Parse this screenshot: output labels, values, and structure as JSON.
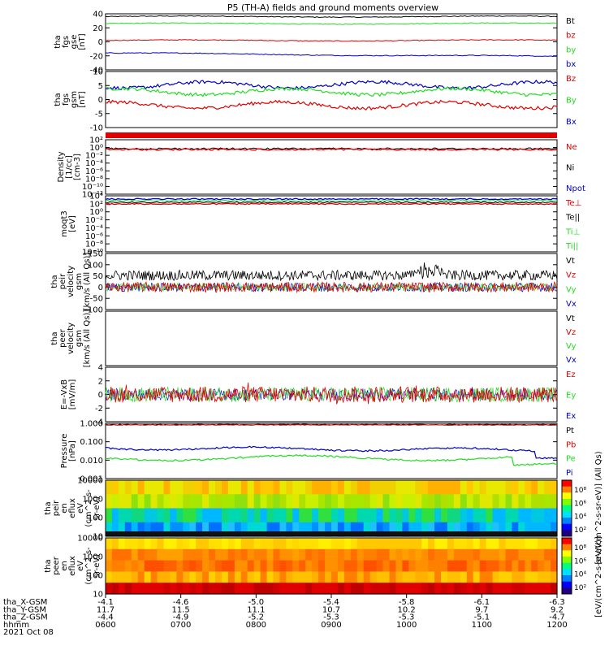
{
  "title": "P5 (TH-A) fields and ground moments overview",
  "colors": {
    "black": "#000000",
    "red": "#e00000",
    "green": "#22dd22",
    "blue": "#0000cc"
  },
  "chart_data": {
    "type": "line",
    "x_axis": {
      "ticks": [
        "0600",
        "0700",
        "0800",
        "0900",
        "1000",
        "1100",
        "1200"
      ],
      "rows": [
        {
          "label": "tha_X-GSM",
          "values": [
            "-4.1",
            "-4.6",
            "-5.0",
            "-5.4",
            "-5.8",
            "-6.1",
            "-6.3"
          ]
        },
        {
          "label": "tha_Y-GSM",
          "values": [
            "11.7",
            "11.5",
            "11.1",
            "10.7",
            "10.2",
            "9.7",
            "9.2"
          ]
        },
        {
          "label": "tha_Z-GSM",
          "values": [
            "-4.4",
            "-4.9",
            "-5.2",
            "-5.3",
            "-5.3",
            "-5.1",
            "-4.7"
          ]
        },
        {
          "label": "hhmm",
          "values": [
            "0600",
            "0700",
            "0800",
            "0900",
            "1000",
            "1100",
            "1200"
          ]
        }
      ],
      "date": "2021 Oct 08"
    },
    "panels": [
      {
        "id": "fgs-gse",
        "ylabel": [
          "tha",
          "fgs",
          "gse",
          "[nT]"
        ],
        "yrange": [
          -40,
          40
        ],
        "ticks": [
          "40",
          "20",
          "0",
          "-20",
          "-40"
        ],
        "legend": [
          {
            "name": "Bt",
            "color": "black"
          },
          {
            "name": "bz",
            "color": "red"
          },
          {
            "name": "by",
            "color": "green"
          },
          {
            "name": "bx",
            "color": "blue"
          }
        ],
        "series": [
          {
            "color": "black",
            "value": 36
          },
          {
            "color": "green",
            "value": 26
          },
          {
            "color": "red",
            "value": 2
          },
          {
            "color": "blue",
            "value": -16
          }
        ]
      },
      {
        "id": "fgs-dsl",
        "ylabel": [
          "tha",
          "fgs",
          "gsm",
          "[nT]"
        ],
        "yrange": [
          -15,
          10
        ],
        "ticks": [
          "10",
          "5",
          "0",
          "-5",
          "-10"
        ],
        "legend": [
          {
            "name": "Bz",
            "color": "red"
          },
          {
            "name": "By",
            "color": "green"
          },
          {
            "name": "Bx",
            "color": "blue"
          }
        ],
        "series": [
          {
            "color": "blue",
            "value": 4
          },
          {
            "color": "green",
            "value": 1
          },
          {
            "color": "red",
            "value": -5
          }
        ]
      },
      {
        "id": "density",
        "ylabel": [
          "Density",
          "[1/cc]",
          "[cm-3]"
        ],
        "ticks": [
          "10²",
          "10⁰",
          "10⁻²",
          "10⁻⁴",
          "10⁻⁶",
          "10⁻⁸",
          "10⁻¹⁰",
          "10⁻¹²"
        ],
        "legend": [
          {
            "name": "Ne",
            "color": "red"
          },
          {
            "name": "Ni",
            "color": "black"
          },
          {
            "name": "Npot",
            "color": "blue"
          }
        ]
      },
      {
        "id": "temperature",
        "ylabel": [
          "moqt3",
          "[eV]"
        ],
        "ticks": [
          "10⁴",
          "10²",
          "10⁰",
          "10⁻²",
          "10⁻⁴",
          "10⁻⁶",
          "10⁻⁸",
          "10⁻¹⁰"
        ],
        "legend": [
          {
            "name": "Te⊥",
            "color": "red"
          },
          {
            "name": "Te||",
            "color": "black"
          },
          {
            "name": "Ti⊥",
            "color": "green"
          },
          {
            "name": "Ti||",
            "color": "green"
          }
        ]
      },
      {
        "id": "ion-velocity",
        "ylabel": [
          "tha",
          "peir",
          "velocity",
          "gsm",
          "[km/s (All Qs)]"
        ],
        "yrange": [
          -100,
          150
        ],
        "ticks": [
          "150",
          "100",
          "50",
          "0",
          "-50",
          "-100"
        ],
        "legend": [
          {
            "name": "Vt",
            "color": "black"
          },
          {
            "name": "Vz",
            "color": "red"
          },
          {
            "name": "Vy",
            "color": "green"
          },
          {
            "name": "Vx",
            "color": "blue"
          }
        ]
      },
      {
        "id": "electron-velocity",
        "ylabel": [
          "tha",
          "peer",
          "velocity",
          "gsm",
          "[km/s (All Qs)]"
        ],
        "ticks": [],
        "legend": [
          {
            "name": "Vt",
            "color": "black"
          },
          {
            "name": "Vz",
            "color": "red"
          },
          {
            "name": "Vy",
            "color": "green"
          },
          {
            "name": "Vx",
            "color": "blue"
          }
        ]
      },
      {
        "id": "efield",
        "ylabel": [
          "E=-VxB",
          "[mV/m]"
        ],
        "yrange": [
          -4,
          4
        ],
        "ticks": [
          "4",
          "2",
          "0",
          "-2",
          "-4"
        ],
        "legend": [
          {
            "name": "Ez",
            "color": "red"
          },
          {
            "name": "Ey",
            "color": "green"
          },
          {
            "name": "Ex",
            "color": "blue"
          }
        ]
      },
      {
        "id": "pressure",
        "ylabel": [
          "Pressure",
          "[nPa]"
        ],
        "ticks": [
          "1.000",
          "0.100",
          "0.010",
          "0.001"
        ],
        "legend": [
          {
            "name": "Pt",
            "color": "black"
          },
          {
            "name": "Pb",
            "color": "red"
          },
          {
            "name": "Pe",
            "color": "green"
          },
          {
            "name": "Pi",
            "color": "blue"
          }
        ]
      },
      {
        "id": "ion-spectrogram",
        "ylabel": [
          "tha",
          "peir",
          "en",
          "eflux",
          "eV",
          "(cm^2-s-",
          "sr-eV)"
        ],
        "ticks": [
          "10000",
          "1000",
          "100",
          "10"
        ],
        "colorbar": [
          "10⁸",
          "10⁶",
          "10⁴",
          "10²"
        ]
      },
      {
        "id": "electron-spectrogram",
        "ylabel": [
          "tha",
          "peer",
          "en",
          "eflux",
          "eV",
          "(cm^2-s-",
          "sr-eV)"
        ],
        "ticks": [
          "10000",
          "1000",
          "100",
          "10"
        ],
        "colorbar": [
          "10⁸",
          "10⁶",
          "10⁴",
          "10²"
        ]
      }
    ],
    "colorbar_label": "[eV/(cm^2-s-sr-eV)] (All Qs)",
    "colorbar_label2": "[eV/(cm^2-s-sr-eV)]"
  }
}
